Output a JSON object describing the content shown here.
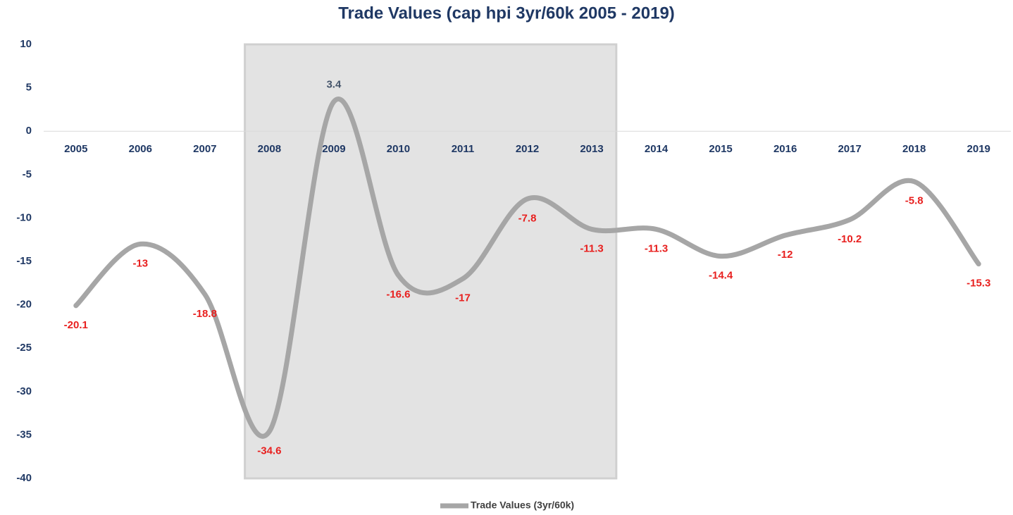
{
  "chart_data": {
    "type": "line",
    "title": "Trade Values (cap hpi 3yr/60k 2005 - 2019)",
    "categories": [
      "2005",
      "2006",
      "2007",
      "2008",
      "2009",
      "2010",
      "2011",
      "2012",
      "2013",
      "2014",
      "2015",
      "2016",
      "2017",
      "2018",
      "2019"
    ],
    "series": [
      {
        "name": "Trade Values (3yr/60k)",
        "color": "#a6a6a6",
        "values": [
          -20.1,
          -13,
          -18.8,
          -34.6,
          3.4,
          -16.6,
          -17,
          -7.8,
          -11.3,
          -11.3,
          -14.4,
          -12,
          -10.2,
          -5.8,
          -15.3
        ]
      }
    ],
    "ylim": [
      -40,
      10
    ],
    "yticks": [
      -40,
      -35,
      -30,
      -25,
      -20,
      -15,
      -10,
      -5,
      0,
      5,
      10
    ],
    "grid": false,
    "smooth": true,
    "legend": "bottom",
    "negative_label_color": "#e8201f",
    "positive_label_color": "#44546a",
    "highlight": {
      "from": "2008",
      "to": "2013",
      "color": "#e3e3e3"
    }
  }
}
